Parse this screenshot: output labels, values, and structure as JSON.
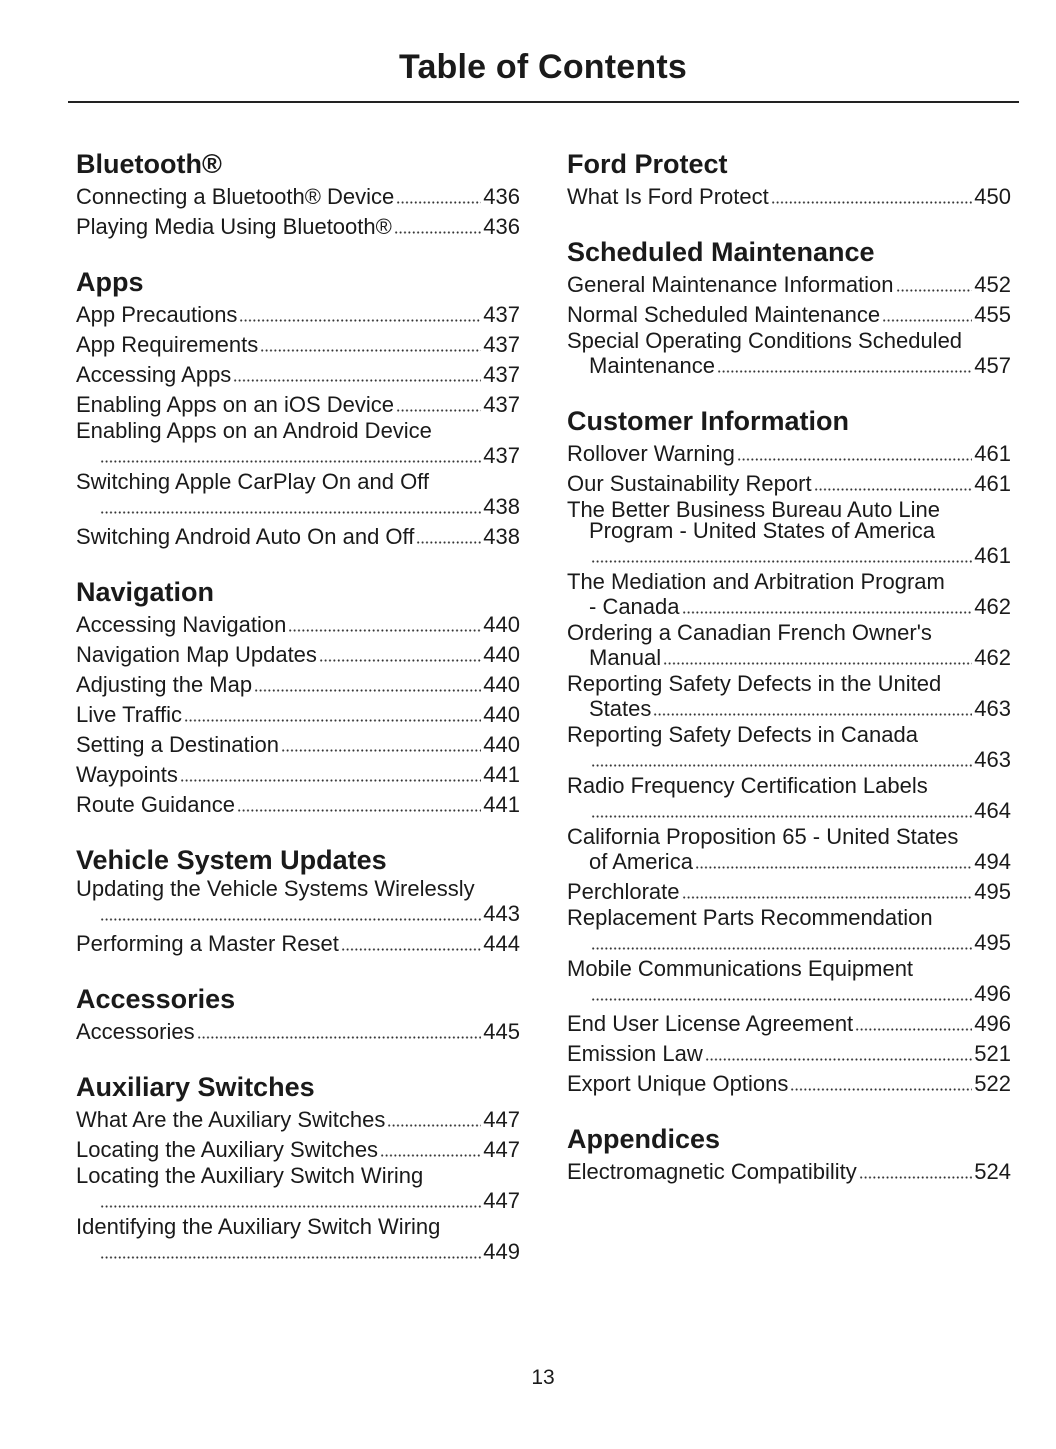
{
  "title": "Table of Contents",
  "page_number": "13",
  "columns": [
    {
      "sections": [
        {
          "heading": "Bluetooth®",
          "entries": [
            {
              "text": "Connecting a Bluetooth® Device",
              "page": "436"
            },
            {
              "text": "Playing Media Using Bluetooth®",
              "page": "436"
            }
          ]
        },
        {
          "heading": "Apps",
          "entries": [
            {
              "text": "App Precautions",
              "page": "437"
            },
            {
              "text": "App Requirements",
              "page": "437"
            },
            {
              "text": "Accessing Apps",
              "page": "437"
            },
            {
              "text": "Enabling Apps on an iOS Device",
              "page": "437"
            },
            {
              "text": "Enabling Apps on an Android Device",
              "cont": "",
              "wrap": true,
              "page": "437"
            },
            {
              "text": "Switching Apple CarPlay On and Off",
              "cont": "",
              "wrap": true,
              "page": "438"
            },
            {
              "text": "Switching Android Auto On and Off",
              "page": "438"
            }
          ]
        },
        {
          "heading": "Navigation",
          "entries": [
            {
              "text": "Accessing Navigation",
              "page": "440"
            },
            {
              "text": "Navigation Map Updates",
              "page": "440"
            },
            {
              "text": "Adjusting the Map",
              "page": "440"
            },
            {
              "text": "Live Traffic",
              "page": "440"
            },
            {
              "text": "Setting a Destination",
              "page": "440"
            },
            {
              "text": "Waypoints",
              "page": "441"
            },
            {
              "text": "Route Guidance",
              "page": "441"
            }
          ]
        },
        {
          "heading": "Vehicle System Updates",
          "entries": [
            {
              "text": "Updating the Vehicle Systems Wirelessly",
              "cont": "",
              "wrap": true,
              "page": "443"
            },
            {
              "text": "Performing a Master Reset",
              "page": "444"
            }
          ]
        },
        {
          "heading": "Accessories",
          "entries": [
            {
              "text": "Accessories",
              "page": "445"
            }
          ]
        },
        {
          "heading": "Auxiliary Switches",
          "entries": [
            {
              "text": "What Are the Auxiliary Switches",
              "page": "447"
            },
            {
              "text": "Locating the Auxiliary Switches",
              "page": "447"
            },
            {
              "text": "Locating the Auxiliary Switch Wiring",
              "cont": "",
              "wrap": true,
              "page": "447"
            },
            {
              "text": "Identifying the Auxiliary Switch Wiring",
              "cont": "",
              "wrap": true,
              "page": "449"
            }
          ]
        }
      ]
    },
    {
      "sections": [
        {
          "heading": "Ford Protect",
          "entries": [
            {
              "text": "What Is Ford Protect",
              "page": "450"
            }
          ]
        },
        {
          "heading": "Scheduled Maintenance",
          "entries": [
            {
              "text": "General Maintenance Information",
              "page": "452"
            },
            {
              "text": "Normal Scheduled Maintenance",
              "page": "455"
            },
            {
              "text": "Special Operating Conditions Scheduled",
              "cont": "Maintenance",
              "wrap": true,
              "page": "457"
            }
          ]
        },
        {
          "heading": "Customer Information",
          "entries": [
            {
              "text": "Rollover Warning",
              "page": "461"
            },
            {
              "text": "Our Sustainability Report",
              "page": "461"
            },
            {
              "text": "The Better Business Bureau Auto Line",
              "cont": "Program - United States of America",
              "cont2": true,
              "wrap": true,
              "page": "461"
            },
            {
              "text": "The Mediation and Arbitration Program",
              "cont": "- Canada",
              "wrap": true,
              "page": "462"
            },
            {
              "text": "Ordering a Canadian French Owner's",
              "cont": "Manual",
              "wrap": true,
              "page": "462"
            },
            {
              "text": "Reporting Safety Defects in the United",
              "cont": "States",
              "wrap": true,
              "page": "463"
            },
            {
              "text": "Reporting Safety Defects in Canada",
              "cont": "",
              "wrap": true,
              "page": "463"
            },
            {
              "text": "Radio Frequency Certification Labels",
              "cont": "",
              "wrap": true,
              "page": "464"
            },
            {
              "text": "California Proposition 65 - United States",
              "cont": "of America",
              "wrap": true,
              "page": "494"
            },
            {
              "text": "Perchlorate",
              "page": "495"
            },
            {
              "text": "Replacement Parts Recommendation",
              "cont": "",
              "wrap": true,
              "page": "495"
            },
            {
              "text": "Mobile Communications Equipment",
              "cont": "",
              "wrap": true,
              "page": "496"
            },
            {
              "text": "End User License Agreement",
              "page": "496"
            },
            {
              "text": "Emission Law",
              "page": "521"
            },
            {
              "text": "Export Unique Options",
              "page": "522"
            }
          ]
        },
        {
          "heading": "Appendices",
          "entries": [
            {
              "text": "Electromagnetic Compatibility",
              "page": "524"
            }
          ]
        }
      ]
    }
  ]
}
